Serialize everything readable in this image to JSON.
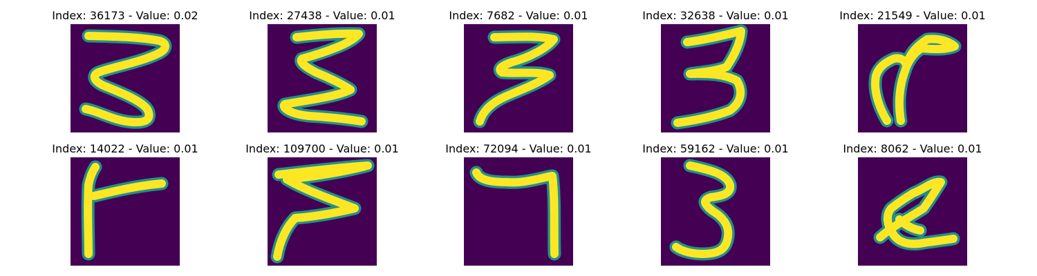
{
  "colors": {
    "background": "#440154",
    "foreground": "#fde725",
    "edge": "#21918c"
  },
  "panels": [
    {
      "title": "Index: 36173 - Value: 0.02",
      "glyph": "zigzag-five"
    },
    {
      "title": "Index: 27438 - Value: 0.01",
      "glyph": "zigzag-sigma"
    },
    {
      "title": "Index: 7682 - Value: 0.01",
      "glyph": "three-italic"
    },
    {
      "title": "Index: 32638 - Value: 0.01",
      "glyph": "three"
    },
    {
      "title": "Index: 21549 - Value: 0.01",
      "glyph": "hook-stroke"
    },
    {
      "title": "Index: 14022 - Value: 0.01",
      "glyph": "sideways-t"
    },
    {
      "title": "Index: 109700 - Value: 0.01",
      "glyph": "zigzag-tail"
    },
    {
      "title": "Index: 72094 - Value: 0.01",
      "glyph": "seven"
    },
    {
      "title": "Index: 59162 - Value: 0.01",
      "glyph": "three-narrow"
    },
    {
      "title": "Index: 8062 - Value: 0.01",
      "glyph": "blob-loop"
    }
  ]
}
